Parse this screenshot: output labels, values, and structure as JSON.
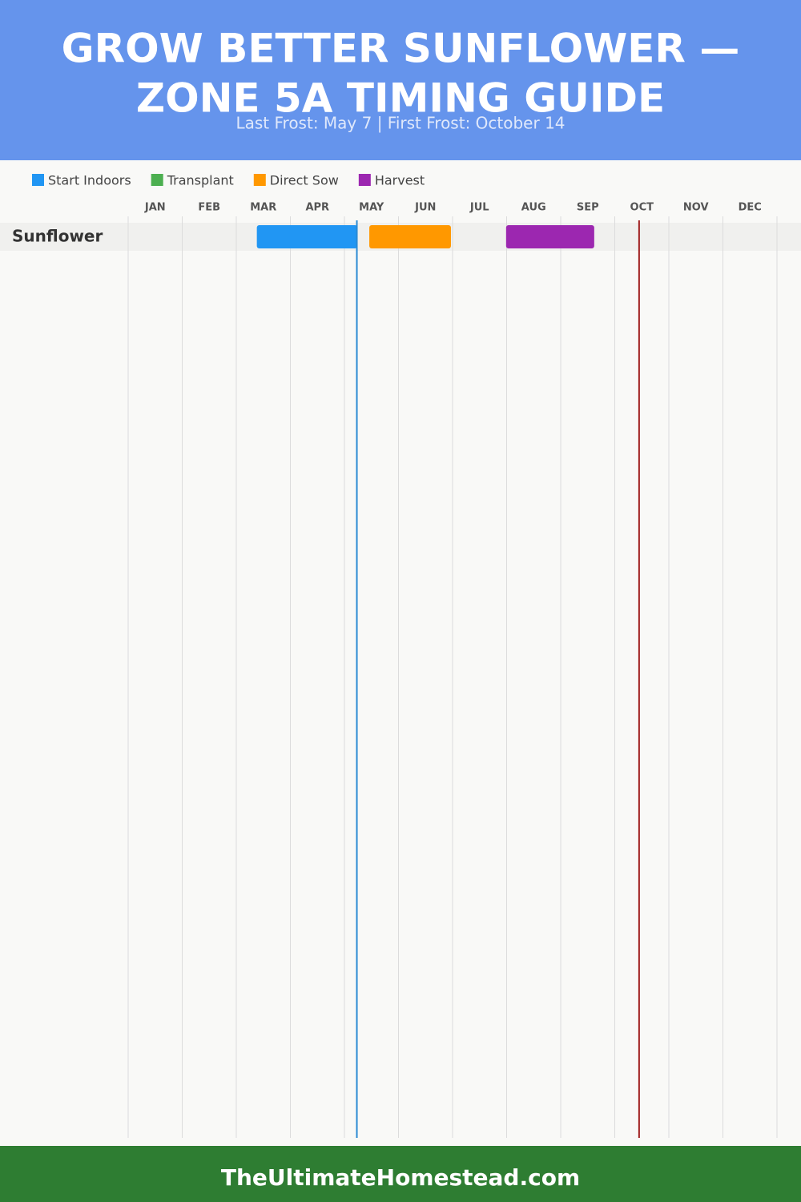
{
  "chart_data": {
    "type": "gantt",
    "title": [
      "GROW BETTER SUNFLOWER —",
      "ZONE 5A TIMING GUIDE"
    ],
    "subtitle": "Last Frost: May 7 | First Frost: October 14",
    "categories": [
      "Sunflower"
    ],
    "months": [
      "JAN",
      "FEB",
      "MAR",
      "APR",
      "MAY",
      "JUN",
      "JUL",
      "AUG",
      "SEP",
      "OCT",
      "NOV",
      "DEC"
    ],
    "xlim": [
      0,
      12
    ],
    "xticks": [
      0,
      1,
      2,
      3,
      4,
      5,
      6,
      7,
      8,
      9,
      10,
      11,
      12
    ],
    "grid": true,
    "series": [
      {
        "name": "Start Indoors",
        "color": "#2196f3",
        "values": [
          [
            2.38,
            4.24
          ]
        ]
      },
      {
        "name": "Transplant",
        "color": "#4caf50",
        "values": [
          null
        ]
      },
      {
        "name": "Direct Sow",
        "color": "#ff9800",
        "values": [
          [
            4.46,
            5.97
          ]
        ]
      },
      {
        "name": "Harvest",
        "color": "#9c27b0",
        "values": [
          [
            6.99,
            8.62
          ]
        ]
      }
    ],
    "frost_lines": [
      {
        "value": 4.23,
        "color": "#2a8ad4"
      },
      {
        "value": 9.45,
        "color": "#a02020"
      }
    ],
    "footer": "TheUltimateHomestead.com"
  }
}
